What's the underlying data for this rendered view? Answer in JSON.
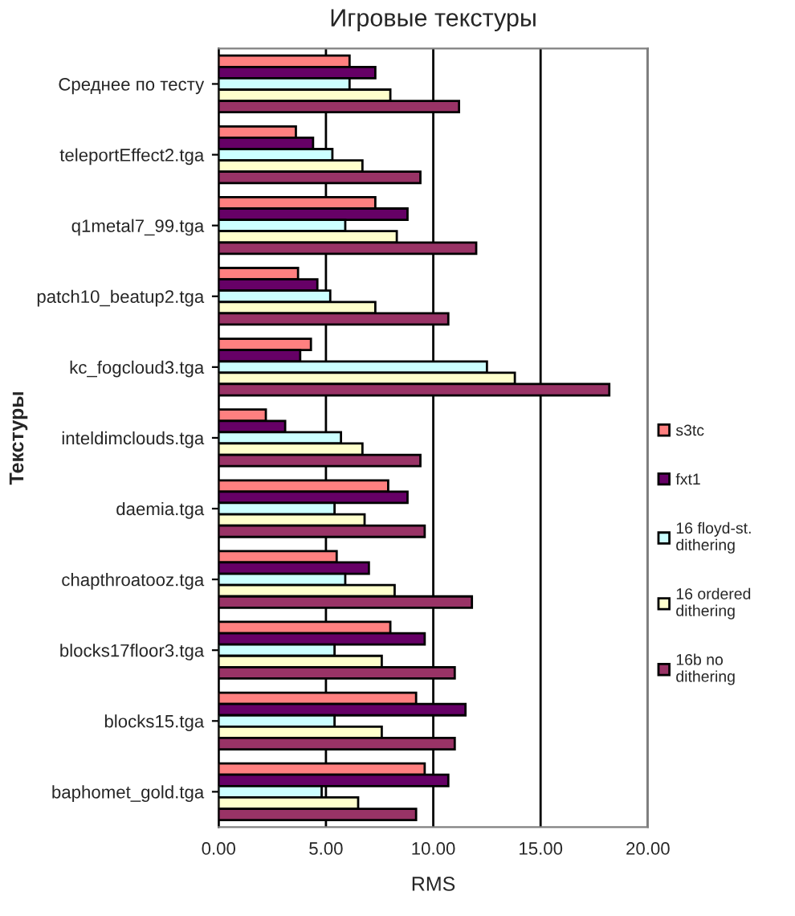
{
  "chart_data": {
    "type": "bar",
    "orientation": "horizontal",
    "title": "Игровые текстуры",
    "xlabel": "RMS",
    "ylabel": "Текстуры",
    "categories": [
      "Среднее по тесту",
      "teleportEffect2.tga",
      "q1metal7_99.tga",
      "patch10_beatup2.tga",
      "kc_fogcloud3.tga",
      "inteldimclouds.tga",
      "daemia.tga",
      "chapthroatooz.tga",
      "blocks17floor3.tga",
      "blocks15.tga",
      "baphomet_gold.tga"
    ],
    "series": [
      {
        "name": "s3tc",
        "color": "#ff8080",
        "values": [
          6.1,
          3.6,
          7.3,
          3.7,
          4.3,
          2.2,
          7.9,
          5.5,
          8.0,
          9.2,
          9.6
        ]
      },
      {
        "name": "fxt1",
        "color": "#660066",
        "values": [
          7.3,
          4.4,
          8.8,
          4.6,
          3.8,
          3.1,
          8.8,
          7.0,
          9.6,
          11.5,
          10.7
        ]
      },
      {
        "name": "16 floyd-st. dithering",
        "color": "#ccffff",
        "values": [
          6.1,
          5.3,
          5.9,
          5.2,
          12.5,
          5.7,
          5.4,
          5.9,
          5.4,
          5.4,
          4.8
        ]
      },
      {
        "name": "16 ordered dithering",
        "color": "#ffffcc",
        "values": [
          8.0,
          6.7,
          8.3,
          7.3,
          13.8,
          6.7,
          6.8,
          8.2,
          7.6,
          7.6,
          6.5
        ]
      },
      {
        "name": "16b no dithering",
        "color": "#993366",
        "values": [
          11.2,
          9.4,
          12.0,
          10.7,
          18.2,
          9.4,
          9.6,
          11.8,
          11.0,
          11.0,
          9.2
        ]
      }
    ],
    "xlim": [
      0,
      20
    ],
    "xticks": [
      {
        "value": 0,
        "label": "0.00"
      },
      {
        "value": 5,
        "label": "5.00"
      },
      {
        "value": 10,
        "label": "10.00"
      },
      {
        "value": 15,
        "label": "15.00"
      },
      {
        "value": 20,
        "label": "20.00"
      }
    ],
    "grid": "x",
    "legend": "right"
  }
}
